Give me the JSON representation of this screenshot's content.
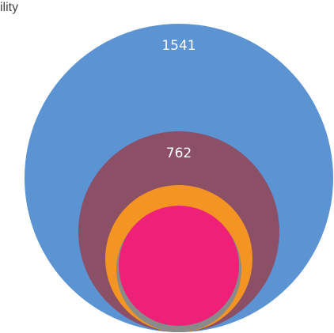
{
  "chart_data": {
    "type": "nested-circles",
    "title": "ility",
    "series": [
      {
        "value": 1541,
        "label": "1541",
        "color": "#5b93d3"
      },
      {
        "value": 762,
        "label": "762",
        "color": "#8b5066"
      },
      {
        "value": null,
        "label": "",
        "color": "#f39423"
      },
      {
        "value": null,
        "label": "",
        "color": "#8a8a8a"
      },
      {
        "value": null,
        "label": "",
        "color": "#ee2077"
      }
    ]
  }
}
